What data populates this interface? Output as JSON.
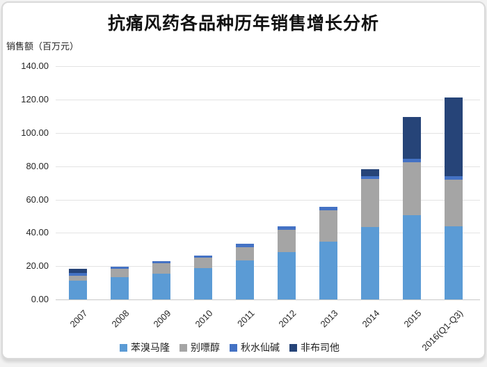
{
  "title": "抗痛风药各品种历年销售增长分析",
  "chart_data": {
    "type": "bar",
    "stacked": true,
    "title": "抗痛风药各品种历年销售增长分析",
    "ylabel": "销售额（百万元）",
    "categories": [
      "2007",
      "2008",
      "2009",
      "2010",
      "2011",
      "2012",
      "2013",
      "2014",
      "2015",
      "2016(Q1-Q3)"
    ],
    "series": [
      {
        "name": "苯溴马隆",
        "color": "#5B9BD5",
        "values": [
          11.2,
          13.3,
          15.4,
          18.8,
          23.3,
          28.4,
          34.6,
          43.6,
          50.6,
          43.9
        ]
      },
      {
        "name": "别嘌醇",
        "color": "#A5A5A5",
        "values": [
          3.2,
          5.0,
          6.3,
          6.3,
          8.1,
          13.4,
          19.0,
          28.6,
          31.9,
          27.9
        ]
      },
      {
        "name": "秋水仙碱",
        "color": "#4472C4",
        "values": [
          1.6,
          1.4,
          1.4,
          1.4,
          2.1,
          2.1,
          2.1,
          1.8,
          2.1,
          2.1
        ]
      },
      {
        "name": "非布司他",
        "color": "#264478",
        "values": [
          2.5,
          0,
          0,
          0,
          0,
          0,
          0,
          4.2,
          24.9,
          47.4
        ]
      }
    ],
    "totals": [
      18.5,
      19.7,
      23.1,
      26.5,
      33.5,
      43.9,
      55.7,
      78.2,
      109.5,
      121.3
    ],
    "ylim": [
      0,
      140
    ],
    "ytick_step": 20,
    "ytick_labels": [
      "0.00",
      "20.00",
      "40.00",
      "60.00",
      "80.00",
      "100.00",
      "120.00",
      "140.00"
    ],
    "grid": true,
    "legend_position": "bottom"
  }
}
